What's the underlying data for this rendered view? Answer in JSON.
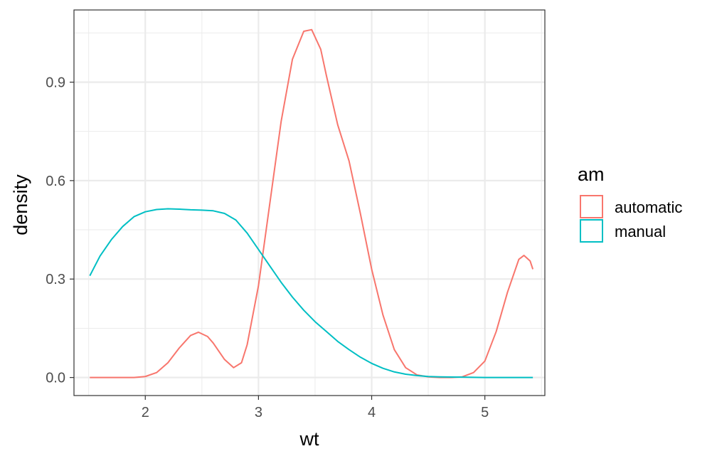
{
  "chart_data": {
    "type": "line",
    "title": "",
    "xlabel": "wt",
    "ylabel": "density",
    "xlim": [
      1.37,
      5.53
    ],
    "ylim": [
      -0.055,
      1.12
    ],
    "x_ticks": [
      2,
      3,
      4,
      5
    ],
    "x_tick_labels": [
      "2",
      "3",
      "4",
      "5"
    ],
    "y_ticks": [
      0.0,
      0.3,
      0.6,
      0.9
    ],
    "y_tick_labels": [
      "0.0",
      "0.3",
      "0.6",
      "0.9"
    ],
    "grid": true,
    "legend": {
      "title": "am",
      "position": "right"
    },
    "series": [
      {
        "name": "automatic",
        "color": "#F8766D",
        "x": [
          1.51,
          1.7,
          1.9,
          2.0,
          2.1,
          2.2,
          2.3,
          2.4,
          2.47,
          2.55,
          2.6,
          2.7,
          2.78,
          2.85,
          2.9,
          3.0,
          3.1,
          3.2,
          3.3,
          3.4,
          3.47,
          3.55,
          3.6,
          3.7,
          3.8,
          3.9,
          4.0,
          4.1,
          4.2,
          4.3,
          4.4,
          4.5,
          4.6,
          4.7,
          4.8,
          4.9,
          5.0,
          5.1,
          5.2,
          5.3,
          5.345,
          5.4,
          5.424
        ],
        "y": [
          0.0,
          0.0,
          0.0,
          0.003,
          0.015,
          0.045,
          0.09,
          0.128,
          0.138,
          0.125,
          0.105,
          0.055,
          0.03,
          0.045,
          0.1,
          0.28,
          0.53,
          0.78,
          0.97,
          1.055,
          1.06,
          1.0,
          0.92,
          0.77,
          0.66,
          0.5,
          0.33,
          0.19,
          0.085,
          0.03,
          0.008,
          0.002,
          0.0,
          0.0,
          0.002,
          0.015,
          0.05,
          0.14,
          0.26,
          0.36,
          0.372,
          0.355,
          0.33
        ]
      },
      {
        "name": "manual",
        "color": "#00BFC4",
        "x": [
          1.51,
          1.6,
          1.7,
          1.8,
          1.9,
          2.0,
          2.1,
          2.2,
          2.3,
          2.4,
          2.5,
          2.6,
          2.7,
          2.8,
          2.9,
          3.0,
          3.1,
          3.2,
          3.3,
          3.4,
          3.5,
          3.6,
          3.7,
          3.8,
          3.9,
          4.0,
          4.1,
          4.2,
          4.3,
          4.4,
          4.5,
          4.6,
          4.8,
          5.0,
          5.2,
          5.424
        ],
        "y": [
          0.31,
          0.37,
          0.42,
          0.46,
          0.49,
          0.505,
          0.512,
          0.514,
          0.513,
          0.511,
          0.51,
          0.508,
          0.5,
          0.48,
          0.44,
          0.39,
          0.34,
          0.29,
          0.245,
          0.205,
          0.17,
          0.14,
          0.11,
          0.085,
          0.062,
          0.043,
          0.028,
          0.017,
          0.01,
          0.006,
          0.003,
          0.002,
          0.001,
          0.0,
          0.0,
          0.0
        ]
      }
    ]
  }
}
